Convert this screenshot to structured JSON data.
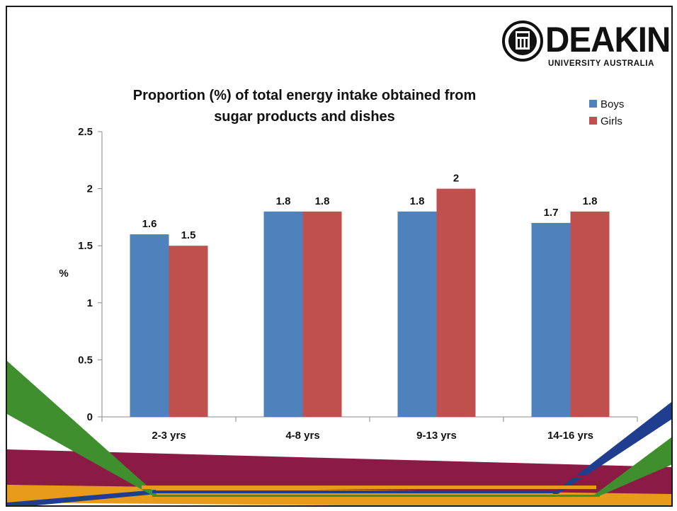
{
  "logo": {
    "name": "DEAKIN",
    "tagline": "UNIVERSITY AUSTRALIA"
  },
  "chart_data": {
    "type": "bar",
    "title": "Proportion (%) of total energy intake obtained from sugar products and dishes",
    "title_lines": [
      "Proportion (%) of total energy intake obtained from",
      "sugar products and dishes"
    ],
    "ylabel": "%",
    "xlabel": "",
    "ylim": [
      0,
      2.5
    ],
    "yticks": [
      0,
      0.5,
      1,
      1.5,
      2,
      2.5
    ],
    "ytick_labels": [
      "0",
      "0.5",
      "1",
      "1.5",
      "2",
      "2.5"
    ],
    "categories": [
      "2-3 yrs",
      "4-8 yrs",
      "9-13 yrs",
      "14-16 yrs"
    ],
    "series": [
      {
        "name": "Boys",
        "color": "#4F81BD",
        "values": [
          1.6,
          1.8,
          1.8,
          1.7
        ],
        "labels": [
          "1.6",
          "1.8",
          "1.8",
          "1.7"
        ]
      },
      {
        "name": "Girls",
        "color": "#C0504D",
        "values": [
          1.5,
          1.8,
          2,
          1.8
        ],
        "labels": [
          "1.5",
          "1.8",
          "2",
          "1.8"
        ]
      }
    ],
    "legend_position": "top-right",
    "grid": false,
    "data_labels": true
  }
}
